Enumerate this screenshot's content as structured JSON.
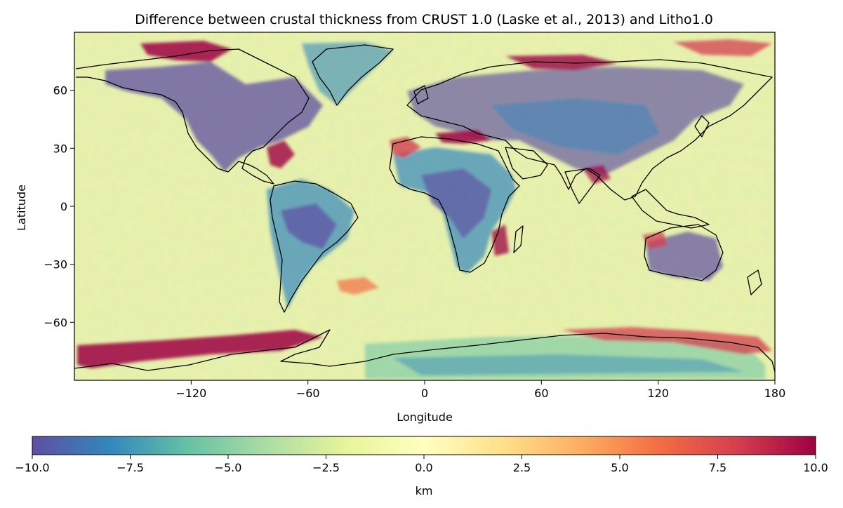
{
  "title": "Difference between crustal thickness from CRUST 1.0 (Laske et al., 2013) and Litho1.0",
  "map": {
    "projection": "PlateCarree",
    "extent": {
      "lon": [
        -180,
        180
      ],
      "lat": [
        -90,
        90
      ]
    },
    "xlabel": "Longitude",
    "ylabel": "Latitude",
    "xticks": [
      -120,
      -60,
      0,
      60,
      120,
      180
    ],
    "xtick_labels": [
      "−120",
      "−60",
      "0",
      "60",
      "120",
      "180"
    ],
    "yticks": [
      60,
      30,
      0,
      -30,
      -60
    ],
    "ytick_labels": [
      "60",
      "30",
      "0",
      "−30",
      "−60"
    ],
    "coastlines": "black",
    "dominant_value_range": "near 0 km over oceans",
    "colormap": "Spectral_r"
  },
  "colorbar": {
    "label": "km",
    "range": [
      -10.0,
      10.0
    ],
    "ticks": [
      -10.0,
      -7.5,
      -5.0,
      -2.5,
      0.0,
      2.5,
      5.0,
      7.5,
      10.0
    ],
    "tick_labels": [
      "−10.0",
      "−7.5",
      "−5.0",
      "−2.5",
      "0.0",
      "2.5",
      "5.0",
      "7.5",
      "10.0"
    ],
    "colors": [
      "#5e4fa2",
      "#3288bd",
      "#66c2a5",
      "#abdda4",
      "#e6f598",
      "#ffffbf",
      "#fee08b",
      "#fdae61",
      "#f46d43",
      "#d53e4f",
      "#9e0142"
    ]
  },
  "colors": {
    "ocean_base": "#e8f3a6",
    "continent_interior": "#5e4fa2",
    "margin_positive": "#9e0142",
    "coastline": "#000000"
  }
}
